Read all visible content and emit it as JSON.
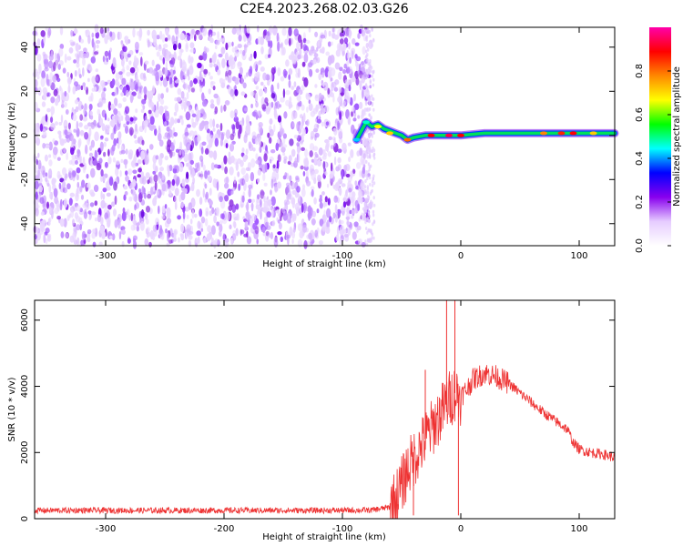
{
  "figure_title": "C2E4.2023.268.02.03.G26",
  "chart_data": [
    {
      "type": "heatmap",
      "xlabel": "Height of straight line (km)",
      "ylabel": "Frequency (Hz)",
      "xlim": [
        -360,
        130
      ],
      "ylim": [
        -50,
        49
      ],
      "x_ticks": [
        -300,
        -200,
        -100,
        0,
        100
      ],
      "y_ticks": [
        -40,
        -20,
        0,
        20,
        40
      ],
      "colorbar": {
        "label": "Normalized spectral amplitude",
        "range": [
          0,
          1
        ],
        "ticks": [
          0.0,
          0.2,
          0.4,
          0.6,
          0.8
        ],
        "colormap": [
          "#ffffff",
          "#e6ccff",
          "#8800ee",
          "#0000ff",
          "#00ffff",
          "#00ff00",
          "#ffff00",
          "#ff8800",
          "#ff0000",
          "#ff00aa"
        ]
      },
      "noise_region": {
        "x_range": [
          -360,
          -76
        ],
        "amplitude": "low (0.0-0.2), broadband across all frequencies"
      },
      "signal_trace": {
        "description": "Narrow high-amplitude band near 0 Hz starting around -85 km",
        "x": [
          -88,
          -80,
          -75,
          -70,
          -65,
          -60,
          -55,
          -50,
          -45,
          -40,
          -30,
          -20,
          -10,
          0,
          20,
          40,
          60,
          80,
          100,
          110,
          120,
          130
        ],
        "y": [
          -2,
          6,
          4,
          5,
          3,
          2,
          1,
          0,
          -2,
          -1,
          0,
          0,
          0,
          0,
          1,
          1,
          1,
          1,
          1,
          1,
          1,
          1
        ]
      }
    },
    {
      "type": "line",
      "xlabel": "Height of straight line (km)",
      "ylabel": "SNR (10 * v/v)",
      "xlim": [
        -360,
        130
      ],
      "ylim": [
        0,
        6600
      ],
      "x_ticks": [
        -300,
        -200,
        -100,
        0,
        100
      ],
      "y_ticks": [
        0,
        2000,
        4000,
        6000
      ],
      "color": "#ee3333",
      "series": [
        {
          "x": [
            -360,
            -300,
            -250,
            -200,
            -150,
            -100,
            -75,
            -60,
            -55,
            -50,
            -45,
            -40,
            -35,
            -30,
            -25,
            -20,
            -15,
            -10,
            -5,
            0,
            5,
            10,
            15,
            20,
            25,
            30,
            40,
            50,
            60,
            70,
            80,
            90,
            95,
            100,
            110,
            120,
            130
          ],
          "y": [
            250,
            250,
            250,
            250,
            250,
            250,
            260,
            350,
            600,
            1000,
            1500,
            1800,
            2100,
            2400,
            2700,
            3000,
            3300,
            3600,
            3800,
            3700,
            3900,
            4200,
            4300,
            4400,
            4350,
            4300,
            4100,
            3800,
            3500,
            3200,
            2950,
            2700,
            2300,
            2100,
            2000,
            1950,
            1850
          ]
        }
      ],
      "spikes": [
        {
          "x": -12,
          "y": 6600
        },
        {
          "x": -5,
          "y": 6600
        },
        {
          "x": -2,
          "y": 100
        },
        {
          "x": -30,
          "y": 4500
        },
        {
          "x": -40,
          "y": 100
        }
      ]
    }
  ]
}
